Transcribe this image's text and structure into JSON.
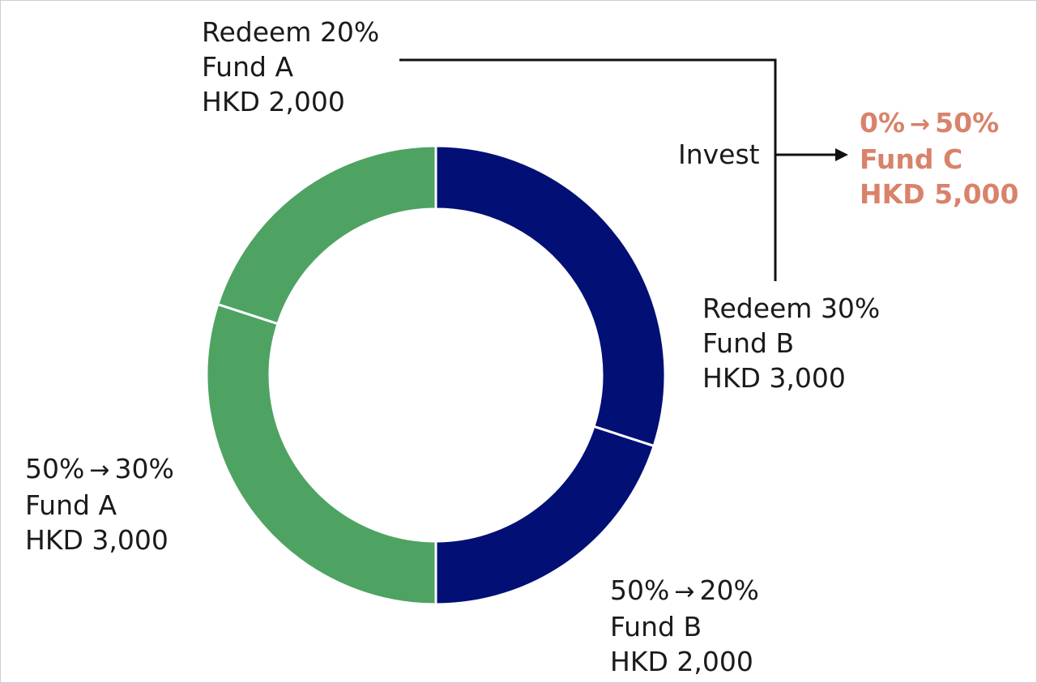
{
  "colors": {
    "fund_a": "#4ea362",
    "fund_b": "#020f75",
    "fund_c_text": "#d9826a",
    "connector": "#111111"
  },
  "redeem_a": {
    "line1": "Redeem 20%",
    "line2": "Fund A",
    "line3": "HKD 2,000"
  },
  "redeem_b": {
    "line1": "Redeem 30%",
    "line2": "Fund B",
    "line3": "HKD 3,000"
  },
  "invest_label": "Invest",
  "fund_c": {
    "from": "0%",
    "to": "50%",
    "name": "Fund C",
    "amount": "HKD 5,000"
  },
  "fund_a_result": {
    "from": "50%",
    "to": "30%",
    "name": "Fund A",
    "amount": "HKD 3,000"
  },
  "fund_b_result": {
    "from": "50%",
    "to": "20%",
    "name": "Fund B",
    "amount": "HKD 2,000"
  },
  "arrow_symbol": "→",
  "chart_data": {
    "type": "pie",
    "style": "donut",
    "slices": [
      {
        "name": "Fund B",
        "value": 30,
        "color": "#020f75"
      },
      {
        "name": "Fund B",
        "value": 20,
        "color": "#020f75"
      },
      {
        "name": "Fund A",
        "value": 30,
        "color": "#4ea362"
      },
      {
        "name": "Fund A",
        "value": 20,
        "color": "#4ea362"
      }
    ]
  }
}
